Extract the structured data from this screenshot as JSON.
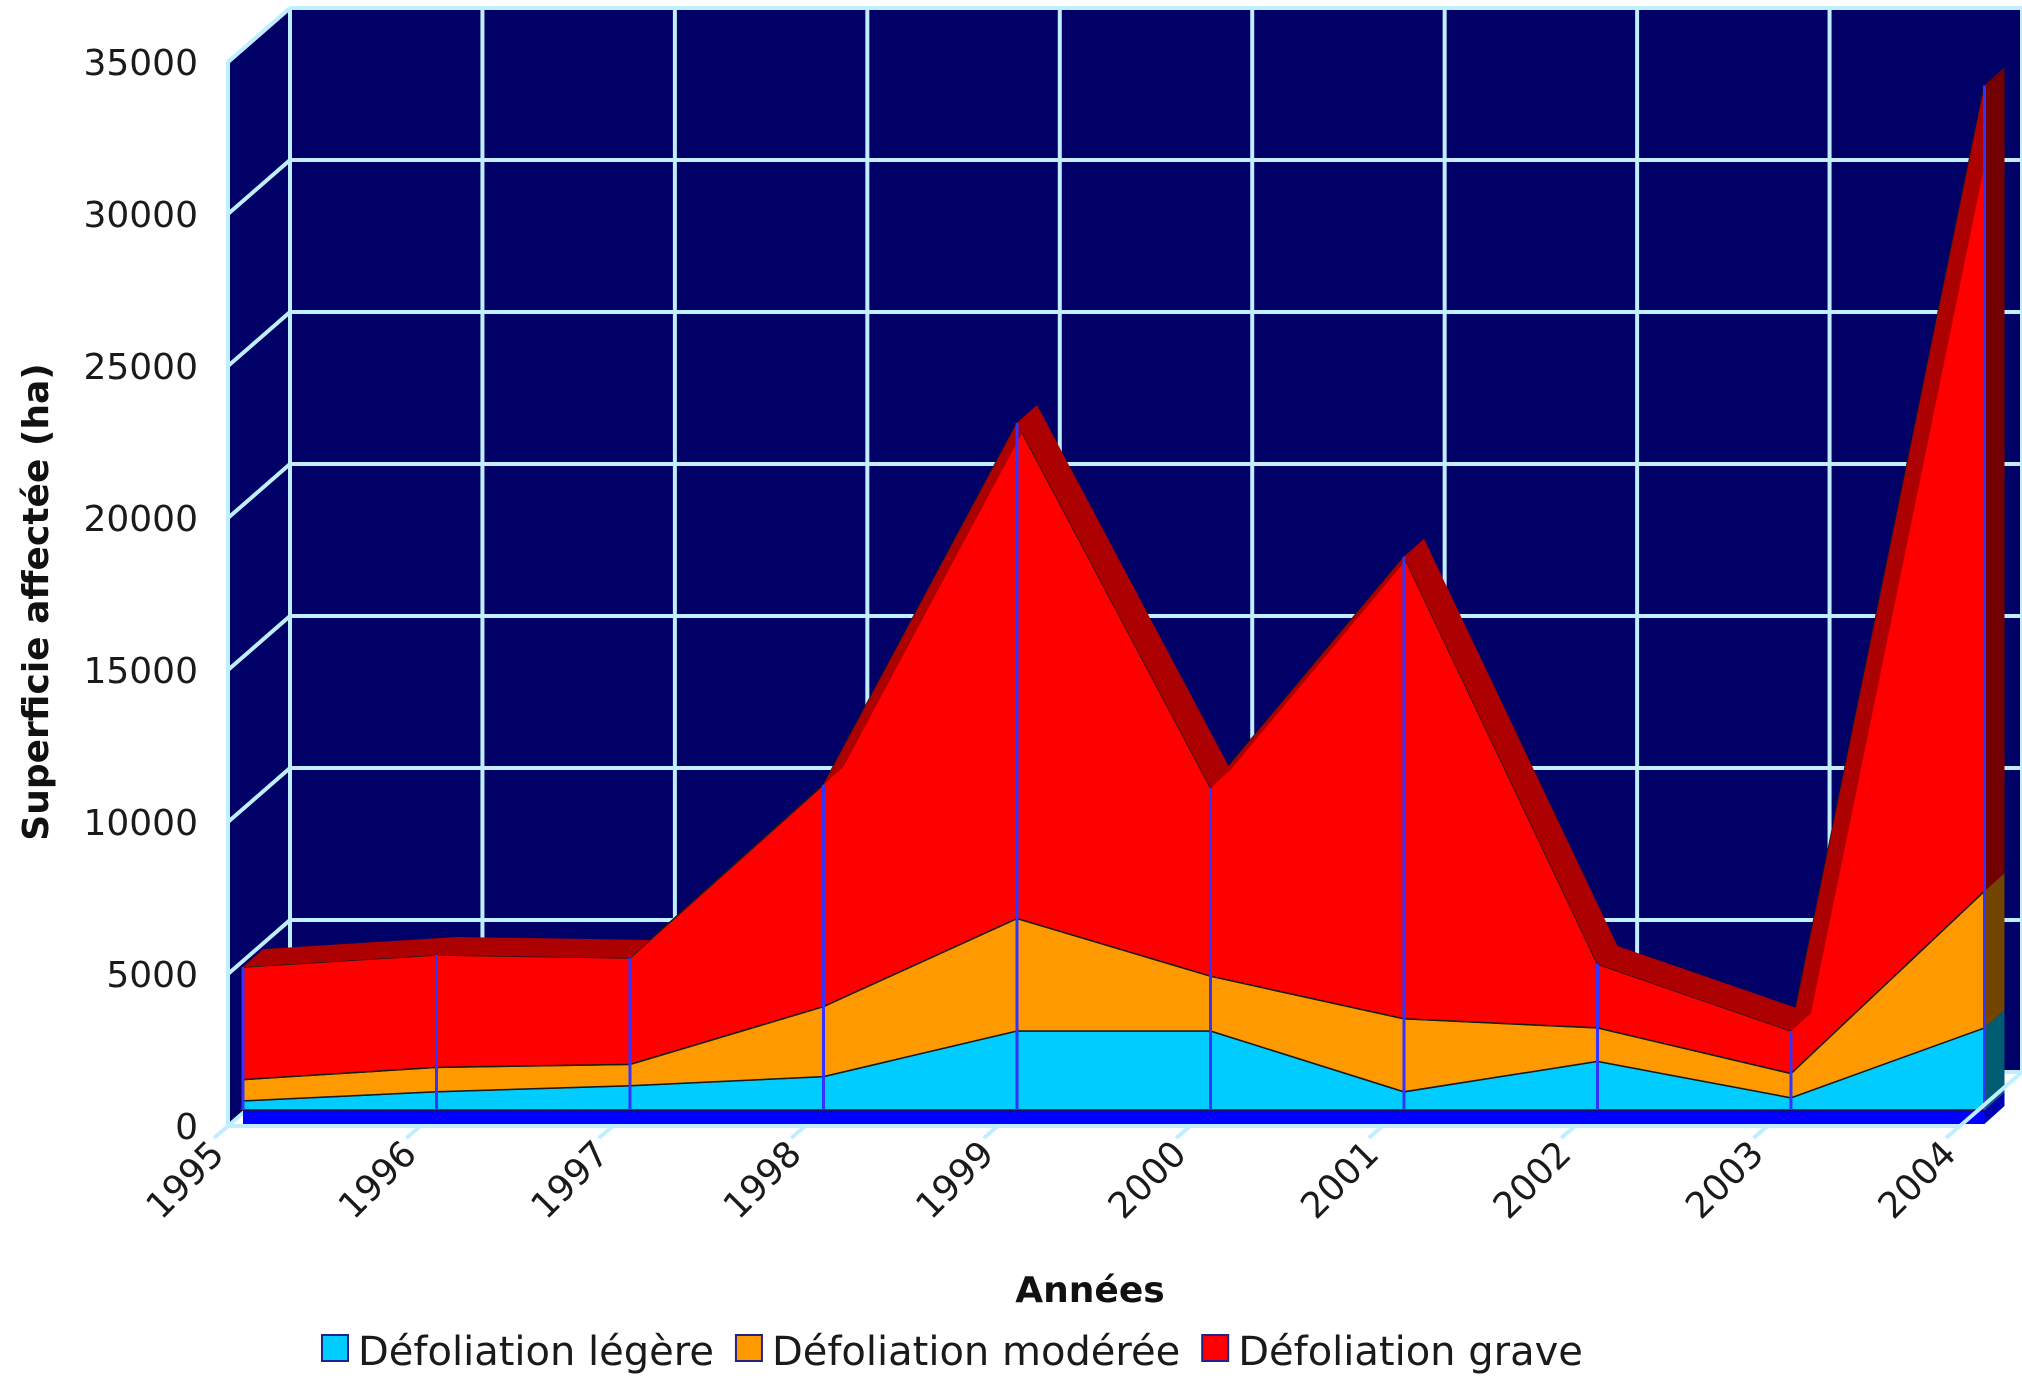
{
  "chart_data": {
    "type": "area",
    "stacked": true,
    "three_d": true,
    "title": "",
    "xlabel": "Années",
    "ylabel": "Superficie  affectée (ha)",
    "ylim": [
      0,
      35000
    ],
    "yticks": [
      0,
      5000,
      10000,
      15000,
      20000,
      25000,
      30000,
      35000
    ],
    "x": [
      "1995",
      "1996",
      "1997",
      "1998",
      "1999",
      "2000",
      "2001",
      "2002",
      "2003",
      "2004"
    ],
    "series": [
      {
        "name": "Défoliation légère",
        "color": "#00ccff",
        "values": [
          300,
          600,
          800,
          1100,
          2600,
          2600,
          600,
          1600,
          400,
          2700
        ]
      },
      {
        "name": "Défoliation modérée",
        "color": "#ff9900",
        "values": [
          700,
          800,
          700,
          2300,
          3700,
          1800,
          2400,
          1100,
          800,
          4500
        ]
      },
      {
        "name": "Défoliation grave",
        "color": "#ff0000",
        "values": [
          3700,
          3700,
          3500,
          7300,
          16300,
          6200,
          15200,
          2100,
          1400,
          26500
        ]
      }
    ],
    "grid": true,
    "legend_position": "bottom",
    "colors": {
      "plot_background": "#000066",
      "grid_line": "#bfefff",
      "floor": "#0000ff",
      "series_edge": "#3333ff"
    }
  }
}
